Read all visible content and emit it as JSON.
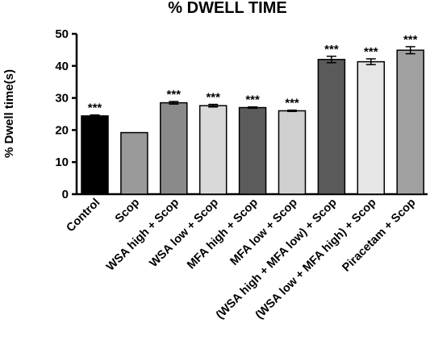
{
  "chart_data": {
    "type": "bar",
    "title": "% DWELL TIME",
    "xlabel": "",
    "ylabel": "% Dwell time(s)",
    "ylim": [
      0,
      50
    ],
    "yticks": [
      0,
      10,
      20,
      30,
      40,
      50
    ],
    "grid": false,
    "categories": [
      "Control",
      "Scop",
      "WSA high + Scop",
      "WSA low + Scop",
      "MFA high + Scop",
      "MFA low + Scop",
      "(WSA high + MFA low) + Scop",
      "(WSA low + MFA high) + Scop",
      "Piracetam + Scop"
    ],
    "values": [
      24.4,
      19.2,
      28.5,
      27.6,
      27.0,
      26.0,
      42.0,
      41.3,
      44.9
    ],
    "errors": [
      0.3,
      0.0,
      0.4,
      0.4,
      0.2,
      0.2,
      1.0,
      0.9,
      1.1
    ],
    "significance": [
      "***",
      "",
      "***",
      "***",
      "***",
      "***",
      "***",
      "***",
      "***"
    ],
    "colors": [
      "#000000",
      "#9a9a9a",
      "#8a8a8a",
      "#d9d9d9",
      "#5c5c5c",
      "#d0d0d0",
      "#5a5a5a",
      "#e6e6e6",
      "#a0a0a0"
    ]
  }
}
